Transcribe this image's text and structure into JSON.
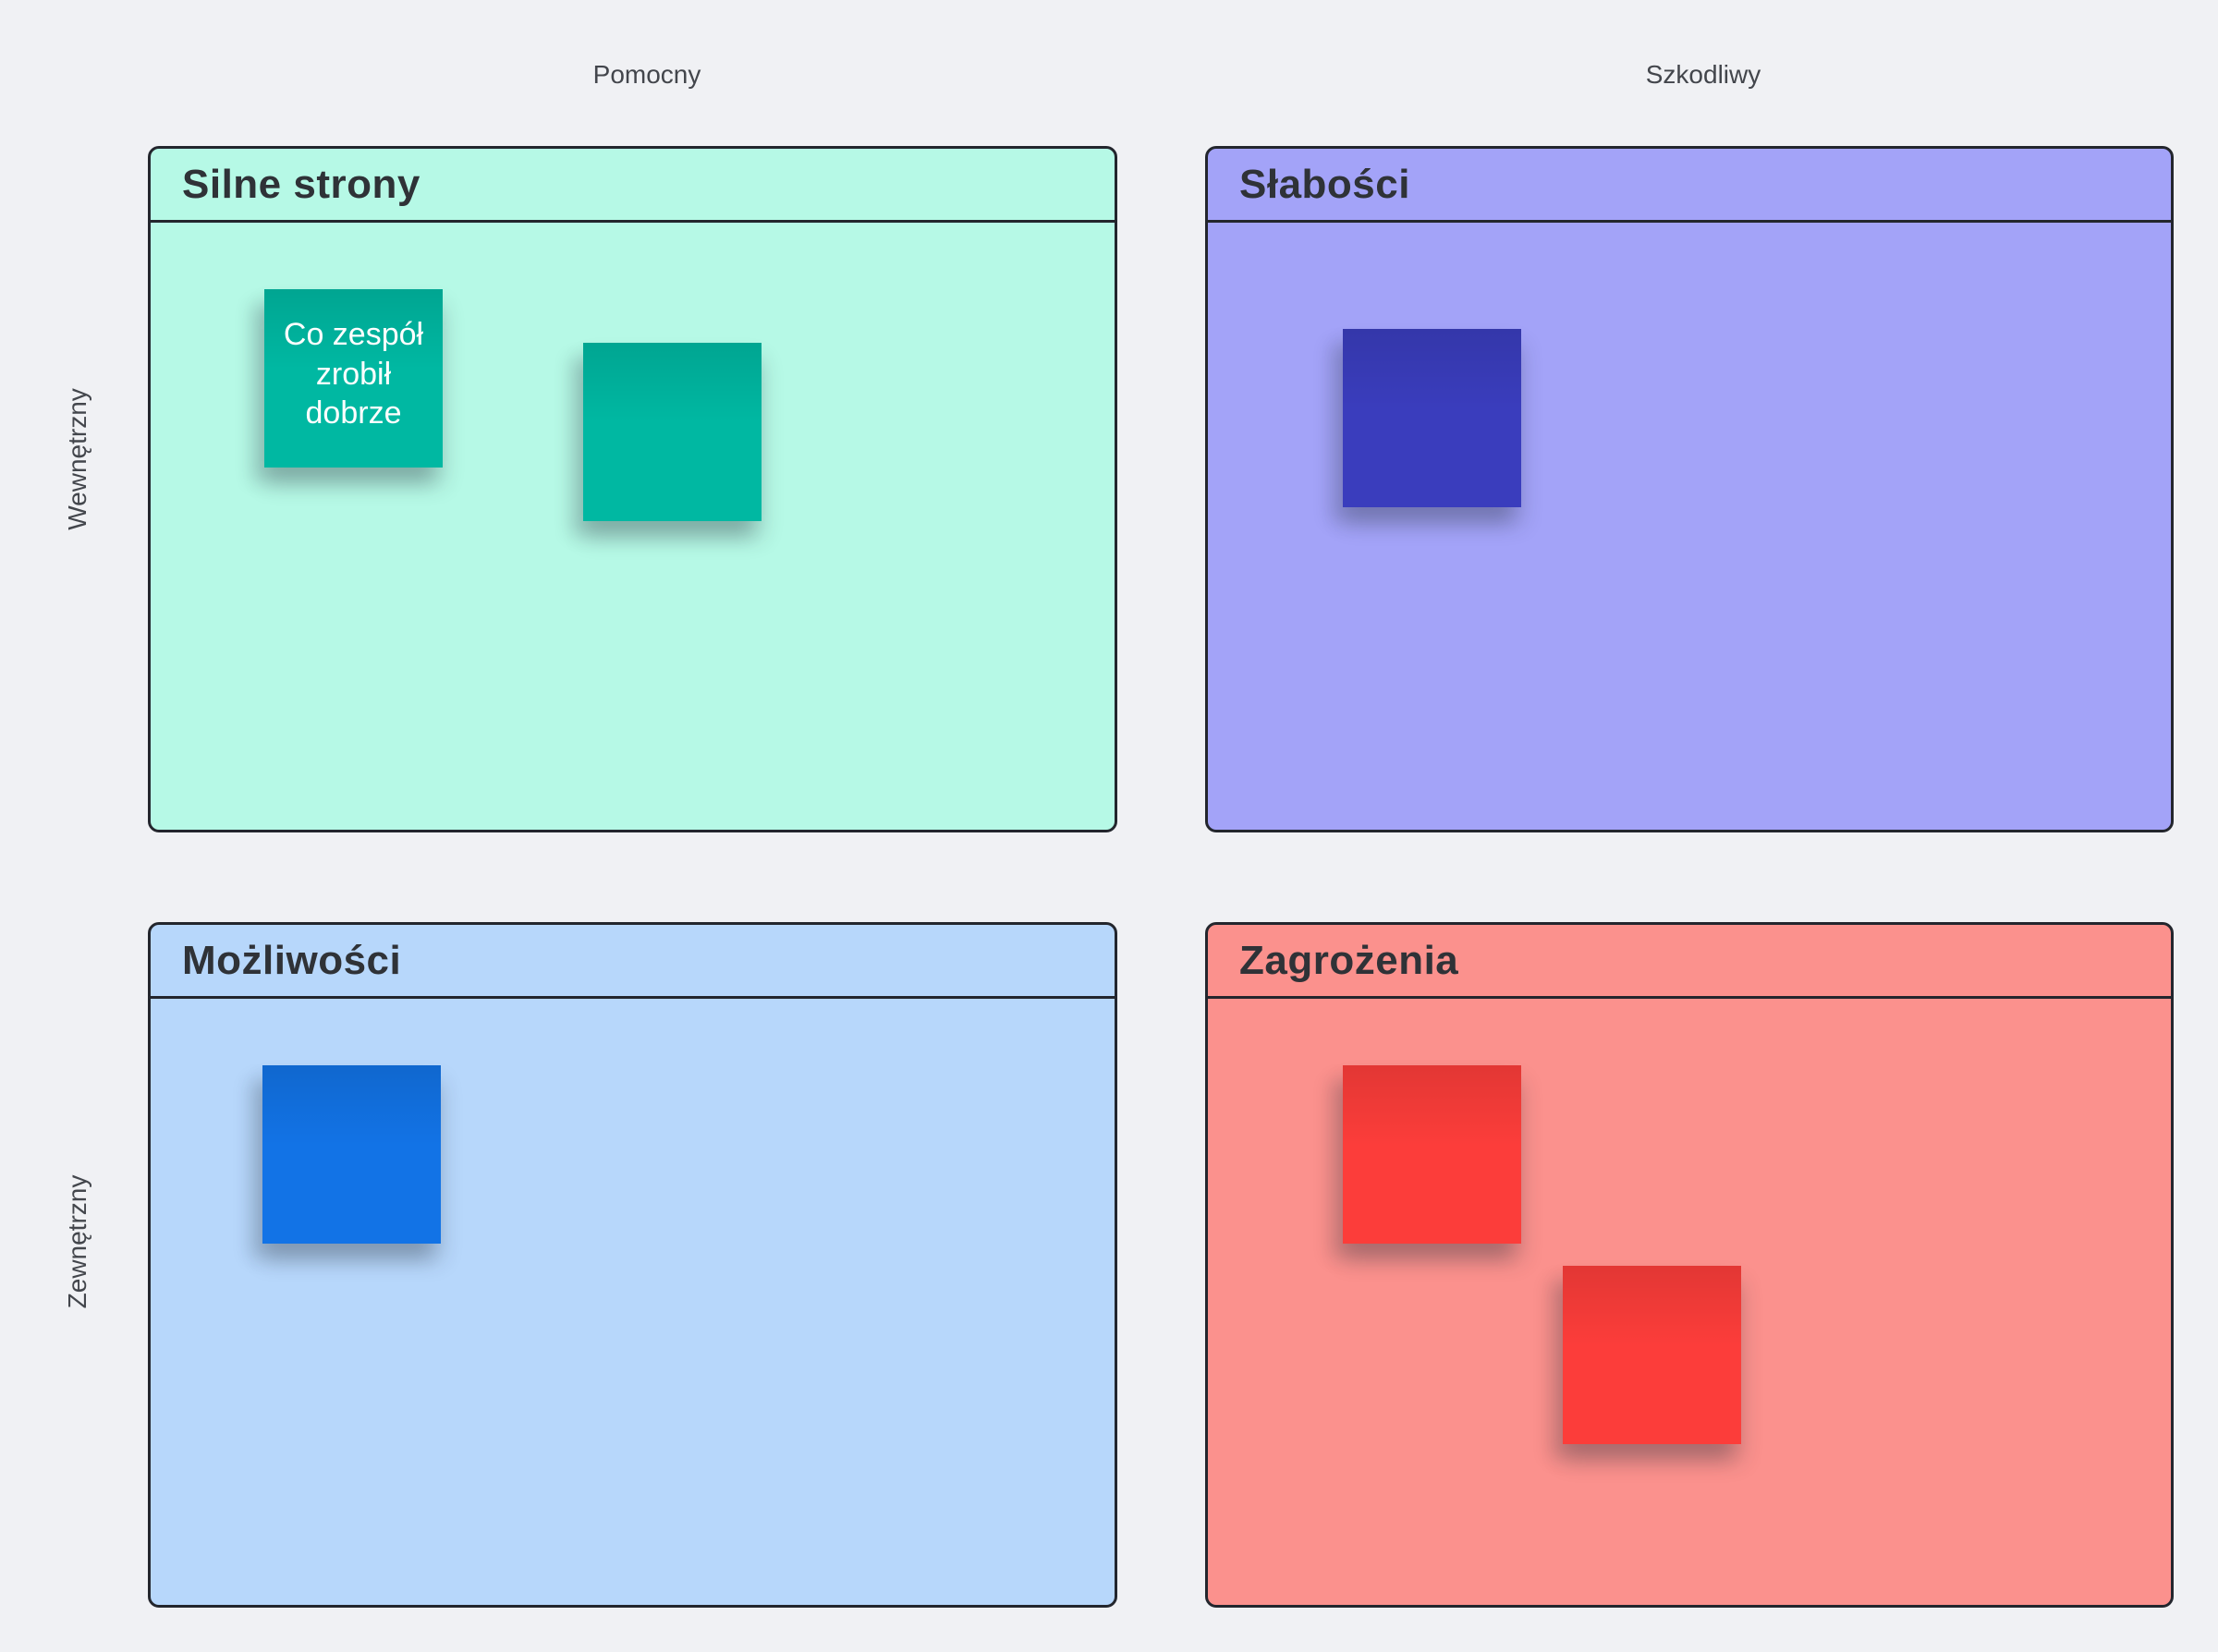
{
  "page": {
    "background": "#f0f1f4"
  },
  "axes": {
    "top_left_label": "Pomocny",
    "top_right_label": "Szkodliwy",
    "side_top_label": "Wewnętrzny",
    "side_bottom_label": "Zewnętrzny"
  },
  "quadrants": {
    "strengths": {
      "title": "Silne strony",
      "bg": "#b6f9e6"
    },
    "weaknesses": {
      "title": "Słabości",
      "bg": "#a3a3f8"
    },
    "opportunities": {
      "title": "Możliwości",
      "bg": "#b7d7fb"
    },
    "threats": {
      "title": "Zagrożenia",
      "bg": "#fb918d"
    }
  },
  "notes": [
    {
      "quadrant": "strengths",
      "text": "Co zespół zrobił dobrze",
      "color": "#00b8a2",
      "text_color": "#ffffff"
    },
    {
      "quadrant": "strengths",
      "text": "",
      "color": "#00b8a2"
    },
    {
      "quadrant": "weaknesses",
      "text": "",
      "color": "#3a3dbd"
    },
    {
      "quadrant": "opportunities",
      "text": "",
      "color": "#1273e6"
    },
    {
      "quadrant": "threats",
      "text": "",
      "color": "#fc3d3a"
    },
    {
      "quadrant": "threats",
      "text": "",
      "color": "#fc3d3a"
    }
  ]
}
